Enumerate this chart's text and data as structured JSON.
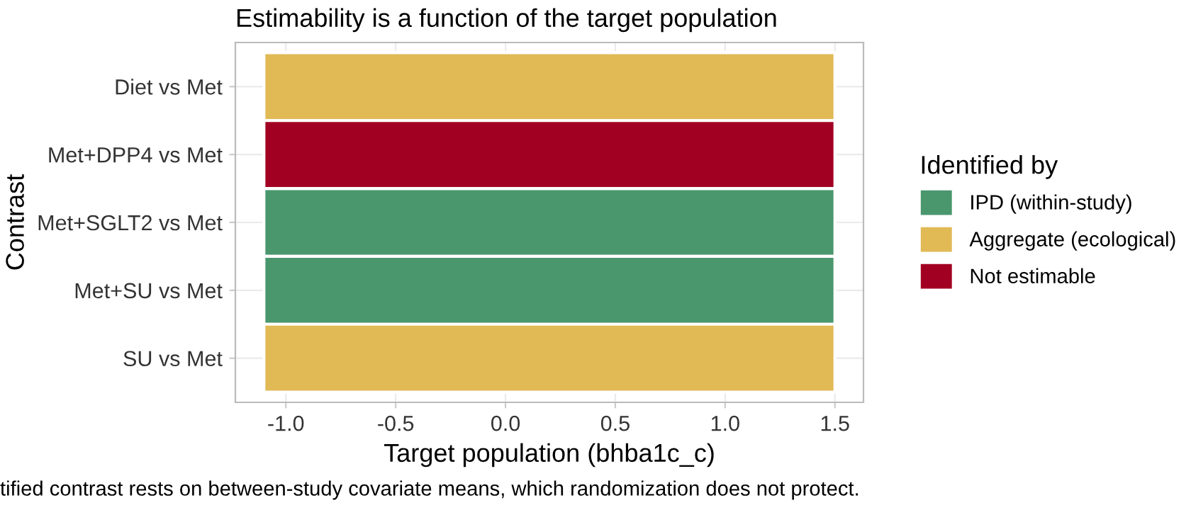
{
  "chart_data": {
    "type": "bar",
    "orientation": "horizontal",
    "title": "Estimability is a function of the target population",
    "xlabel": "Target population (bhba1c_c)",
    "ylabel": "Contrast",
    "legend_title": "Identified by",
    "categories": [
      "Diet vs Met",
      "Met+DPP4 vs Met",
      "Met+SGLT2 vs Met",
      "Met+SU vs Met",
      "SU vs Met"
    ],
    "series": [
      {
        "name": "IPD (within-study)",
        "color": "#4a966d",
        "values": [
          null,
          null,
          2.6,
          2.6,
          null
        ],
        "base": [
          null,
          null,
          -1.1,
          -1.1,
          null
        ]
      },
      {
        "name": "Aggregate (ecological)",
        "color": "#e1b955",
        "values": [
          2.6,
          null,
          null,
          null,
          2.6
        ],
        "base": [
          -1.1,
          null,
          null,
          null,
          -1.1
        ]
      },
      {
        "name": "Not estimable",
        "color": "#a20022",
        "values": [
          null,
          2.6,
          null,
          null,
          null
        ],
        "base": [
          null,
          -1.1,
          null,
          null,
          null
        ]
      }
    ],
    "xlim": [
      -1.23,
      1.63
    ],
    "xticks": [
      {
        "value": -1.0,
        "label": "-1.0"
      },
      {
        "value": -0.5,
        "label": "-0.5"
      },
      {
        "value": 0.0,
        "label": "0.0"
      },
      {
        "value": 0.5,
        "label": "0.5"
      },
      {
        "value": 1.0,
        "label": "1.0"
      },
      {
        "value": 1.5,
        "label": "1.5"
      }
    ],
    "grid": true,
    "legend": "right",
    "annotations": [
      "tified contrast rests on between-study covariate means, which randomization does not protect."
    ]
  }
}
